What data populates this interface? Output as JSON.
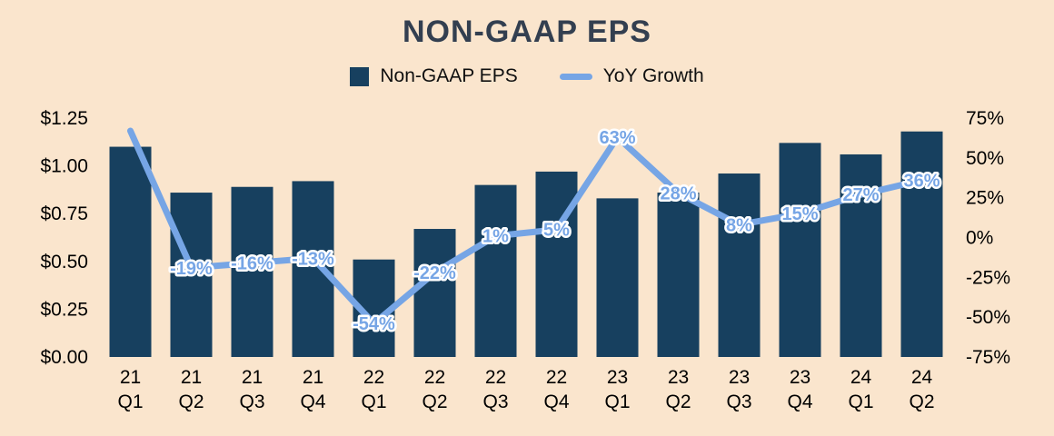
{
  "title": "NON-GAAP EPS",
  "legend": [
    {
      "label": "Non-GAAP EPS",
      "swatch": "bar"
    },
    {
      "label": "YoY Growth",
      "swatch": "line"
    }
  ],
  "colors": {
    "background": "#FAE5CD",
    "bar": "#17405F",
    "line": "#76A5E5",
    "title": "#333F50",
    "axis_text": "#000000",
    "label_halo": "#FFFFFF"
  },
  "chart_data": {
    "type": "bar",
    "title": "NON-GAAP EPS",
    "categories": [
      "21 Q1",
      "21 Q2",
      "21 Q3",
      "21 Q4",
      "22 Q1",
      "22 Q2",
      "22 Q3",
      "22 Q4",
      "23 Q1",
      "23 Q2",
      "23 Q3",
      "23 Q4",
      "24 Q1",
      "24 Q2"
    ],
    "series": [
      {
        "name": "Non-GAAP EPS",
        "type": "bar",
        "axis": "left",
        "values": [
          1.1,
          0.86,
          0.89,
          0.92,
          0.51,
          0.67,
          0.9,
          0.97,
          0.83,
          0.86,
          0.96,
          1.12,
          1.06,
          1.18
        ]
      },
      {
        "name": "YoY Growth",
        "type": "line",
        "axis": "right",
        "values": [
          67,
          -19,
          -16,
          -13,
          -54,
          -22,
          1,
          5,
          63,
          28,
          8,
          15,
          27,
          36
        ],
        "point_labels": [
          "",
          "-19%",
          "-16%",
          "-13%",
          "-54%",
          "-22%",
          "1%",
          "5%",
          "63%",
          "28%",
          "8%",
          "15%",
          "27%",
          "36%"
        ]
      }
    ],
    "left_axis": {
      "min": 0,
      "max": 1.25,
      "ticks": [
        "$0.00",
        "$0.25",
        "$0.50",
        "$0.75",
        "$1.00",
        "$1.25"
      ]
    },
    "right_axis": {
      "min": -75,
      "max": 75,
      "ticks": [
        "-75%",
        "-50%",
        "-25%",
        "0%",
        "25%",
        "50%",
        "75%"
      ]
    },
    "grid": false,
    "legend_position": "top"
  }
}
